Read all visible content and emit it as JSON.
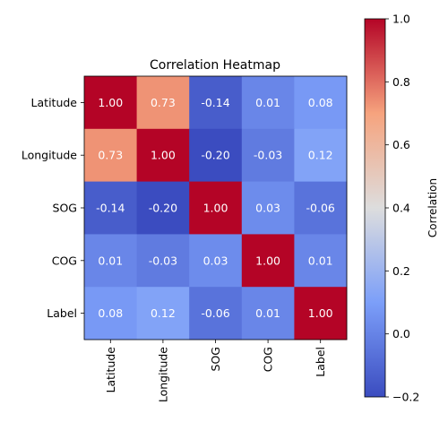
{
  "chart_data": {
    "type": "heatmap",
    "title": "Correlation Heatmap",
    "categories": [
      "Latitude",
      "Longitude",
      "SOG",
      "COG",
      "Label"
    ],
    "matrix": [
      [
        1.0,
        0.73,
        -0.14,
        0.01,
        0.08
      ],
      [
        0.73,
        1.0,
        -0.2,
        -0.03,
        0.12
      ],
      [
        -0.14,
        -0.2,
        1.0,
        0.03,
        -0.06
      ],
      [
        0.01,
        -0.03,
        0.03,
        1.0,
        0.01
      ],
      [
        0.08,
        0.12,
        -0.06,
        0.01,
        1.0
      ]
    ],
    "colormap": "coolwarm",
    "vmin": -0.2,
    "vmax": 1.0,
    "colorbar": {
      "label": "Correlation",
      "ticks": [
        "−0.2",
        "0.0",
        "0.2",
        "0.4",
        "0.6",
        "0.8",
        "1.0"
      ],
      "tick_values": [
        -0.2,
        0.0,
        0.2,
        0.4,
        0.6,
        0.8,
        1.0
      ]
    },
    "value_format": "2 decimals",
    "annotation_color": "#ffffff"
  }
}
